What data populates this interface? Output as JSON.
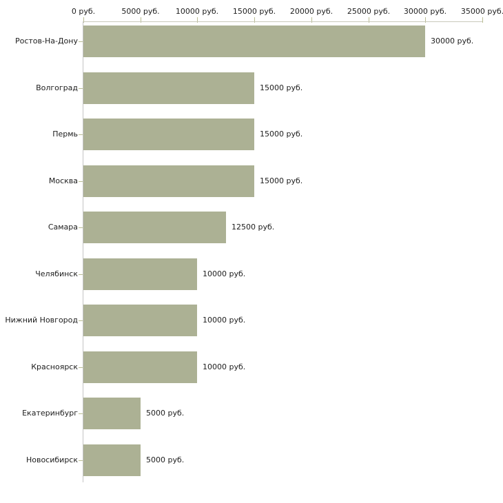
{
  "chart_data": {
    "type": "bar",
    "orientation": "horizontal",
    "categories": [
      "Ростов-На-Дону",
      "Волгоград",
      "Пермь",
      "Москва",
      "Самара",
      "Челябинск",
      "Нижний Новгород",
      "Красноярск",
      "Екатеринбург",
      "Новосибирск"
    ],
    "values": [
      30000,
      15000,
      15000,
      15000,
      12500,
      10000,
      10000,
      10000,
      5000,
      5000
    ],
    "value_labels": [
      "30000 руб.",
      "15000 руб.",
      "15000 руб.",
      "15000 руб.",
      "12500 руб.",
      "10000 руб.",
      "10000 руб.",
      "10000 руб.",
      "5000 руб.",
      "5000 руб."
    ],
    "x_tick_values": [
      0,
      5000,
      10000,
      15000,
      20000,
      25000,
      30000,
      35000
    ],
    "x_tick_labels": [
      "0 руб.",
      "5000 руб.",
      "10000 руб.",
      "15000 руб.",
      "20000 руб.",
      "25000 руб.",
      "30000 руб.",
      "35000 руб."
    ],
    "xlim": [
      0,
      35000
    ],
    "unit_suffix": " руб.",
    "grid": false,
    "legend": false
  },
  "colors": {
    "bar_fill": "#acb194",
    "x_axis_line": "#c8c8ba",
    "y_axis_line": "#c4c4c4",
    "tick_mark": "#b9bc92",
    "text": "#1c1c1c",
    "background": "#ffffff"
  }
}
